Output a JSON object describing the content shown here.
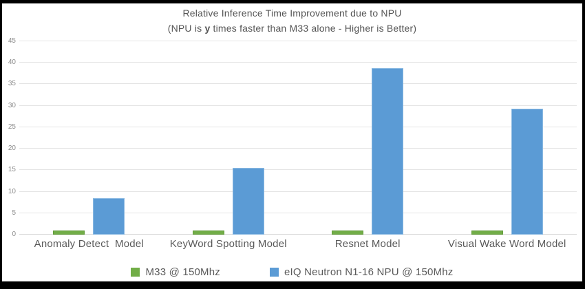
{
  "chart_data": {
    "type": "bar",
    "title": "Relative Inference Time Improvement due to NPU",
    "subtitle": {
      "prefix": "(NPU is ",
      "bold": "y",
      "suffix": " times faster than M33 alone - Higher is Better)"
    },
    "categories": [
      "Anomaly Detect  Model",
      "KeyWord Spotting Model",
      "Resnet Model",
      "Visual Wake Word Model"
    ],
    "series": [
      {
        "name": "M33 @ 150Mhz",
        "color": "#71ad47",
        "border_color": "#61993a",
        "values": [
          1,
          1,
          1,
          1
        ]
      },
      {
        "name": "eIQ Neutron N1-16 NPU @ 150Mhz",
        "color": "#5b9bd5",
        "border_color": "#8ab9e2",
        "values": [
          8.5,
          15.6,
          38.7,
          29.3
        ]
      }
    ],
    "xlabel": "",
    "ylabel": "",
    "ylim": [
      0,
      45
    ],
    "yticks": [
      0,
      5,
      10,
      15,
      20,
      25,
      30,
      35,
      40,
      45
    ],
    "grid": "horizontal",
    "legend_position": "bottom",
    "grid_color": "#e4e4e4",
    "baseline_color": "#d9d9d9",
    "tick_color": "#8c8c8c",
    "label_color": "#595959",
    "title_color": "#555555",
    "background_color": "#ffffff",
    "frame_color": "#000000"
  }
}
